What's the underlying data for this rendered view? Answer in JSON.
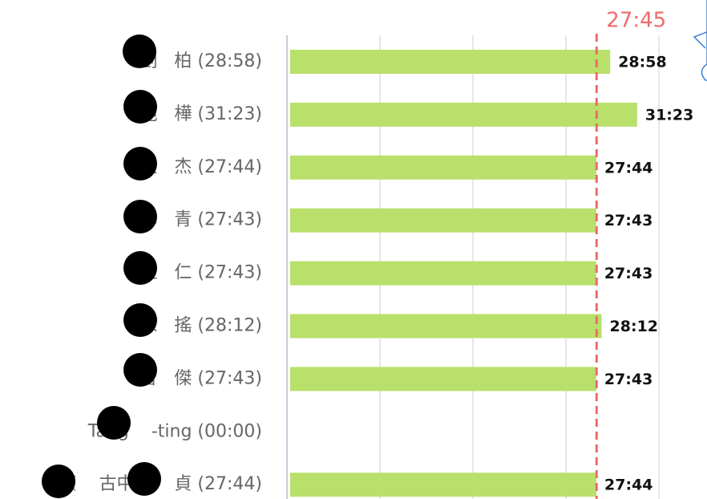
{
  "chart_data": {
    "type": "hbar",
    "categories": [
      "劉   柏 (28:58)",
      "施   樺 (31:23)",
      "王   杰 (27:44)",
      "卓   青 (27:43)",
      "王   仁 (27:43)",
      "陳   搖 (28:12)",
      "曾   傑 (27:43)",
      "Tang    -ting (00:00)",
      "蕨    古中 黃   貞 (27:44)"
    ],
    "values": [
      1738,
      1883,
      1664,
      1663,
      1663,
      1692,
      1663,
      0,
      1664
    ],
    "value_labels": [
      "28:58",
      "31:23",
      "27:44",
      "27:43",
      "27:43",
      "28:12",
      "27:43",
      null,
      "27:44"
    ],
    "color": "#b9e06b",
    "xlim": [
      0,
      2000
    ],
    "xticks": [
      0,
      500,
      1000,
      1500,
      2000
    ],
    "grid": true,
    "reference_line": {
      "value": 1665,
      "label": "27:45",
      "color": "#f06a6a"
    }
  }
}
